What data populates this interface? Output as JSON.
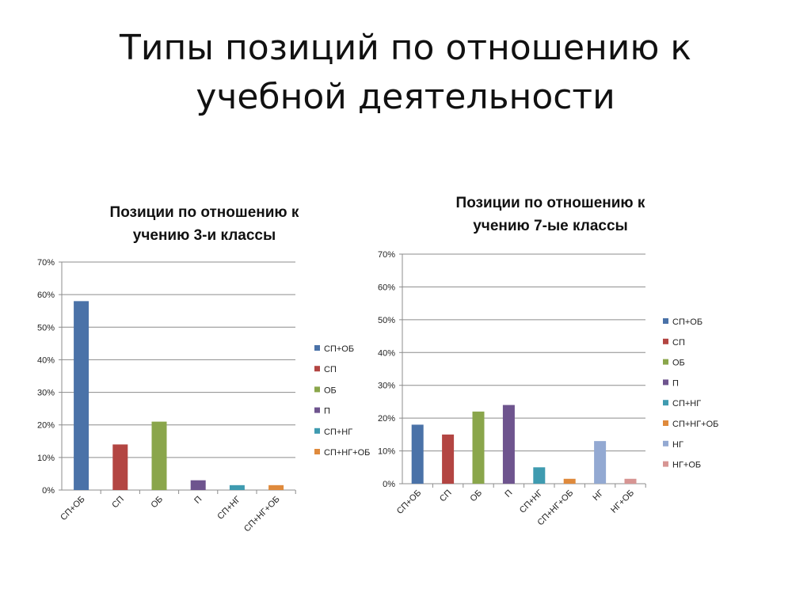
{
  "slide": {
    "title_line1": "Типы позиций по отношению к",
    "title_line2": "учебной деятельности"
  },
  "chart_data": [
    {
      "type": "bar",
      "title_line1": "Позиции по отношению к",
      "title_line2": "учению 3-и классы",
      "categories": [
        "СП+ОБ",
        "СП",
        "ОБ",
        "П",
        "СП+НГ",
        "СП+НГ+ОБ"
      ],
      "values": [
        58,
        14,
        21,
        3,
        1.5,
        1.5
      ],
      "colors": [
        "#4A72A8",
        "#B34542",
        "#8AA64B",
        "#6E548E",
        "#3F9BB0",
        "#DF8A3C"
      ],
      "legend": [
        "СП+ОБ",
        "СП",
        "ОБ",
        "П",
        "СП+НГ",
        "СП+НГ+ОБ"
      ],
      "legend_position": "right",
      "yticks": [
        "0%",
        "10%",
        "20%",
        "30%",
        "40%",
        "50%",
        "60%",
        "70%"
      ],
      "ylim": [
        0,
        70
      ],
      "grid": true
    },
    {
      "type": "bar",
      "title_line1": "Позиции по отношению к",
      "title_line2": "учению 7-ые классы",
      "categories": [
        "СП+ОБ",
        "СП",
        "ОБ",
        "П",
        "СП+НГ",
        "СП+НГ+ОБ",
        "НГ",
        "НГ+ОБ"
      ],
      "values": [
        18,
        15,
        22,
        24,
        5,
        1.5,
        13,
        1.5
      ],
      "colors": [
        "#4A72A8",
        "#B34542",
        "#8AA64B",
        "#6E548E",
        "#3F9BB0",
        "#DF8A3C",
        "#93A9D2",
        "#D79593"
      ],
      "legend": [
        "СП+ОБ",
        "СП",
        "ОБ",
        "П",
        "СП+НГ",
        "СП+НГ+ОБ",
        "НГ",
        "НГ+ОБ"
      ],
      "legend_position": "right",
      "yticks": [
        "0%",
        "10%",
        "20%",
        "30%",
        "40%",
        "50%",
        "60%",
        "70%"
      ],
      "ylim": [
        0,
        70
      ],
      "grid": true
    }
  ]
}
